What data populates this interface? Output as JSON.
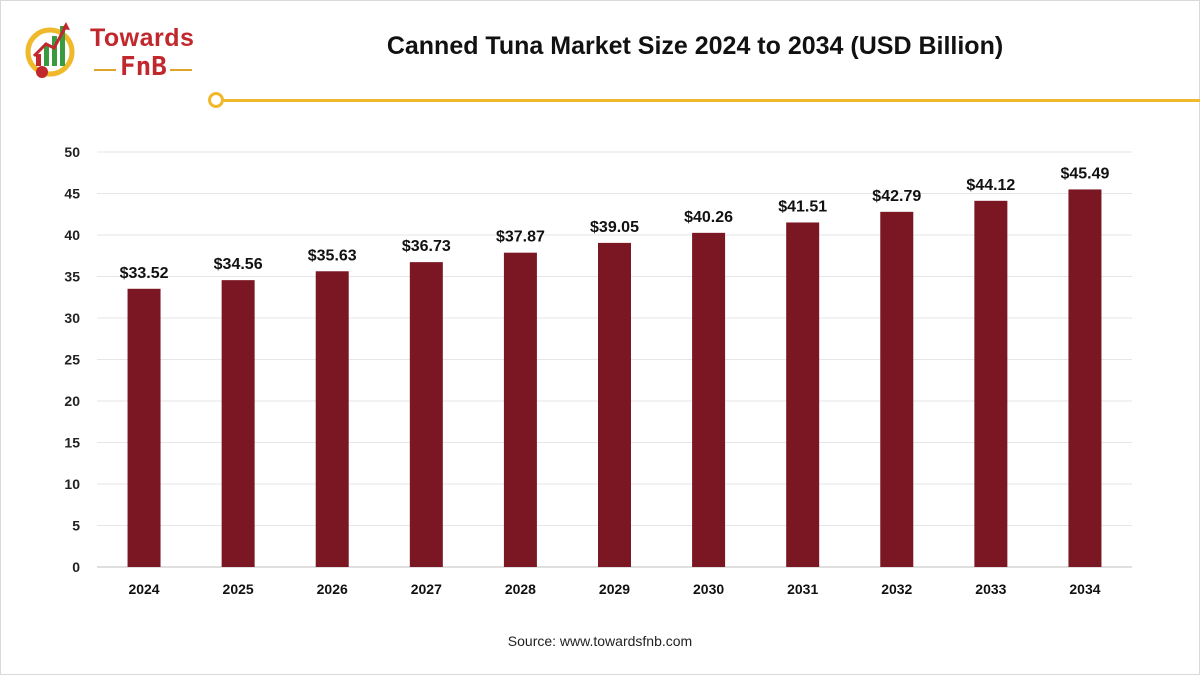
{
  "brand": {
    "word1": "Towards",
    "word2": "FnB"
  },
  "colors": {
    "bar": "#7a1722",
    "accent": "#efb92b",
    "brand_red": "#c0282d",
    "brand_green": "#3a9a3f"
  },
  "chart_data": {
    "type": "bar",
    "title": "Canned Tuna Market Size 2024 to 2034 (USD Billion)",
    "categories": [
      "2024",
      "2025",
      "2026",
      "2027",
      "2028",
      "2029",
      "2030",
      "2031",
      "2032",
      "2033",
      "2034"
    ],
    "values": [
      33.52,
      34.56,
      35.63,
      36.73,
      37.87,
      39.05,
      40.26,
      41.51,
      42.79,
      44.12,
      45.49
    ],
    "data_labels": [
      "$33.52",
      "$34.56",
      "$35.63",
      "$36.73",
      "$37.87",
      "$39.05",
      "$40.26",
      "$41.51",
      "$42.79",
      "$44.12",
      "$45.49"
    ],
    "yticks": [
      "0",
      "5",
      "10",
      "15",
      "20",
      "25",
      "30",
      "35",
      "40",
      "45",
      "50"
    ],
    "ylim": [
      0,
      50
    ],
    "xlabel": "",
    "ylabel": "",
    "grid": true,
    "legend": "none"
  },
  "source": "Source: www.towardsfnb.com"
}
